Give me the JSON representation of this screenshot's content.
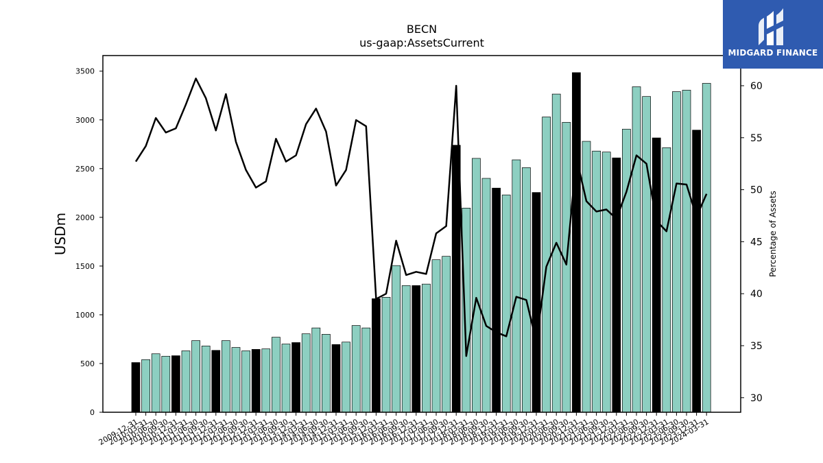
{
  "chart_data": {
    "type": "bar",
    "title": "BECN",
    "subtitle": "us-gaap:AssetsCurrent",
    "ylabel": "USDm",
    "y2label": "Percentage of Assets",
    "ylim": [
      0,
      3660
    ],
    "y2lim": [
      28.6,
      62.9
    ],
    "yticks": [
      0,
      500,
      1000,
      1500,
      2000,
      2500,
      3000,
      3500
    ],
    "y2ticks": [
      30,
      35,
      40,
      45,
      50,
      55,
      60
    ],
    "grid": false,
    "legend": "none",
    "categories": [
      "2009-12-31",
      "2010-03-31",
      "2010-06-30",
      "2010-09-30",
      "2010-12-31",
      "2011-03-31",
      "2011-06-30",
      "2011-09-30",
      "2011-12-31",
      "2012-03-31",
      "2012-06-30",
      "2012-09-30",
      "2012-12-31",
      "2013-03-31",
      "2013-06-30",
      "2013-09-30",
      "2013-12-31",
      "2014-03-31",
      "2014-06-30",
      "2014-09-30",
      "2014-12-31",
      "2015-03-31",
      "2015-06-30",
      "2015-09-30",
      "2015-12-31",
      "2016-03-31",
      "2016-06-30",
      "2016-09-30",
      "2016-12-31",
      "2017-03-31",
      "2017-06-30",
      "2017-09-30",
      "2017-12-31",
      "2018-03-31",
      "2018-06-30",
      "2018-09-30",
      "2018-12-31",
      "2019-03-31",
      "2019-06-30",
      "2019-09-30",
      "2019-12-31",
      "2020-03-31",
      "2020-06-30",
      "2020-09-30",
      "2020-12-31",
      "2021-03-31",
      "2021-06-30",
      "2021-09-30",
      "2021-12-31",
      "2022-03-31",
      "2022-06-30",
      "2022-09-30",
      "2022-12-31",
      "2023-03-31",
      "2023-06-30",
      "2023-09-30",
      "2023-12-31",
      "2024-03-31"
    ],
    "series": [
      {
        "kind": "bar",
        "values": [
          510,
          540,
          600,
          575,
          580,
          630,
          735,
          680,
          635,
          735,
          665,
          630,
          645,
          650,
          770,
          700,
          715,
          805,
          865,
          800,
          695,
          720,
          890,
          865,
          1165,
          1180,
          1505,
          1300,
          1300,
          1315,
          1565,
          1600,
          2740,
          2095,
          2605,
          2400,
          2300,
          2230,
          2590,
          2510,
          2255,
          3030,
          3265,
          2975,
          3485,
          2780,
          2680,
          2670,
          2610,
          2905,
          3340,
          3240,
          2815,
          2715,
          3290,
          3305,
          2895,
          3375
        ],
        "highlight_color": "#000000",
        "color": "#8dcfc1"
      },
      {
        "kind": "line",
        "axis": "right",
        "values": [
          52.7,
          54.2,
          56.9,
          55.5,
          55.9,
          58.2,
          60.7,
          58.8,
          55.7,
          59.2,
          54.6,
          51.9,
          50.2,
          50.8,
          54.9,
          52.7,
          53.3,
          56.3,
          57.8,
          55.6,
          50.4,
          51.9,
          56.7,
          56.1,
          39.5,
          40,
          45.1,
          41.8,
          42.1,
          41.9,
          45.8,
          46.5,
          60,
          34,
          39.6,
          36.9,
          36.3,
          35.9,
          39.7,
          39.4,
          35.4,
          42.6,
          44.9,
          42.8,
          53.1,
          48.9,
          47.9,
          48.1,
          47.2,
          49.8,
          53.3,
          52.5,
          47,
          46,
          50.6,
          50.5,
          47.4,
          49.6
        ],
        "color": "#000000"
      }
    ],
    "highlight_months": "12"
  },
  "logo": {
    "name": "MIDGARD FINANCE"
  }
}
